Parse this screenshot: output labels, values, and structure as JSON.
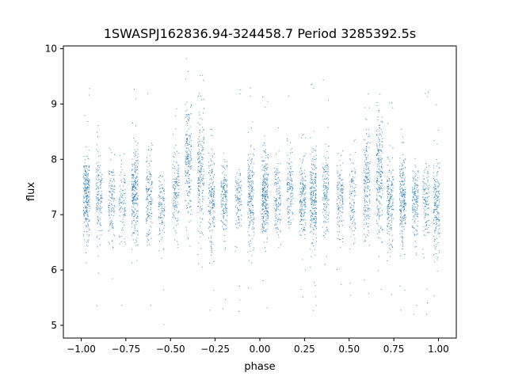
{
  "chart_data": {
    "type": "scatter",
    "title": "1SWASPJ162836.94-324458.7 Period 3285392.5s",
    "xlabel": "phase",
    "ylabel": "flux",
    "xlim": [
      -1.1,
      1.1
    ],
    "ylim": [
      4.77,
      10.05
    ],
    "xticks": [
      "−1.00",
      "−0.75",
      "−0.50",
      "−0.25",
      "0.00",
      "0.25",
      "0.50",
      "0.75",
      "1.00"
    ],
    "xtick_values": [
      -1.0,
      -0.75,
      -0.5,
      -0.25,
      0.0,
      0.25,
      0.5,
      0.75,
      1.0
    ],
    "yticks": [
      "5",
      "6",
      "7",
      "8",
      "9",
      "10"
    ],
    "ytick_values": [
      5,
      6,
      7,
      8,
      9,
      10
    ],
    "grid": false,
    "legend": "none",
    "marker_color": "#1f77b4",
    "clusters": [
      {
        "phase": -0.97,
        "center": 7.35,
        "spread": 0.35,
        "count": 260
      },
      {
        "phase": -0.9,
        "center": 7.3,
        "spread": 0.4,
        "count": 140
      },
      {
        "phase": -0.83,
        "center": 7.25,
        "spread": 0.35,
        "count": 120
      },
      {
        "phase": -0.77,
        "center": 7.2,
        "spread": 0.35,
        "count": 90
      },
      {
        "phase": -0.7,
        "center": 7.35,
        "spread": 0.45,
        "count": 240
      },
      {
        "phase": -0.62,
        "center": 7.3,
        "spread": 0.4,
        "count": 150
      },
      {
        "phase": -0.55,
        "center": 7.1,
        "spread": 0.35,
        "count": 110
      },
      {
        "phase": -0.47,
        "center": 7.45,
        "spread": 0.4,
        "count": 140
      },
      {
        "phase": -0.4,
        "center": 7.9,
        "spread": 0.55,
        "count": 200
      },
      {
        "phase": -0.33,
        "center": 7.7,
        "spread": 0.55,
        "count": 190
      },
      {
        "phase": -0.27,
        "center": 7.3,
        "spread": 0.45,
        "count": 170
      },
      {
        "phase": -0.2,
        "center": 7.35,
        "spread": 0.35,
        "count": 160
      },
      {
        "phase": -0.12,
        "center": 7.25,
        "spread": 0.3,
        "count": 110
      },
      {
        "phase": -0.05,
        "center": 7.3,
        "spread": 0.45,
        "count": 190
      },
      {
        "phase": 0.03,
        "center": 7.3,
        "spread": 0.4,
        "count": 280
      },
      {
        "phase": 0.1,
        "center": 7.25,
        "spread": 0.35,
        "count": 130
      },
      {
        "phase": 0.17,
        "center": 7.4,
        "spread": 0.35,
        "count": 130
      },
      {
        "phase": 0.24,
        "center": 7.3,
        "spread": 0.4,
        "count": 180
      },
      {
        "phase": 0.3,
        "center": 7.3,
        "spread": 0.4,
        "count": 240
      },
      {
        "phase": 0.37,
        "center": 7.35,
        "spread": 0.4,
        "count": 150
      },
      {
        "phase": 0.45,
        "center": 7.3,
        "spread": 0.35,
        "count": 130
      },
      {
        "phase": 0.52,
        "center": 7.3,
        "spread": 0.4,
        "count": 110
      },
      {
        "phase": 0.6,
        "center": 7.6,
        "spread": 0.5,
        "count": 190
      },
      {
        "phase": 0.67,
        "center": 7.7,
        "spread": 0.55,
        "count": 220
      },
      {
        "phase": 0.73,
        "center": 7.2,
        "spread": 0.4,
        "count": 180
      },
      {
        "phase": 0.8,
        "center": 7.3,
        "spread": 0.4,
        "count": 220
      },
      {
        "phase": 0.87,
        "center": 7.25,
        "spread": 0.35,
        "count": 150
      },
      {
        "phase": 0.93,
        "center": 7.2,
        "spread": 0.35,
        "count": 120
      },
      {
        "phase": 0.99,
        "center": 7.15,
        "spread": 0.4,
        "count": 180
      }
    ]
  }
}
